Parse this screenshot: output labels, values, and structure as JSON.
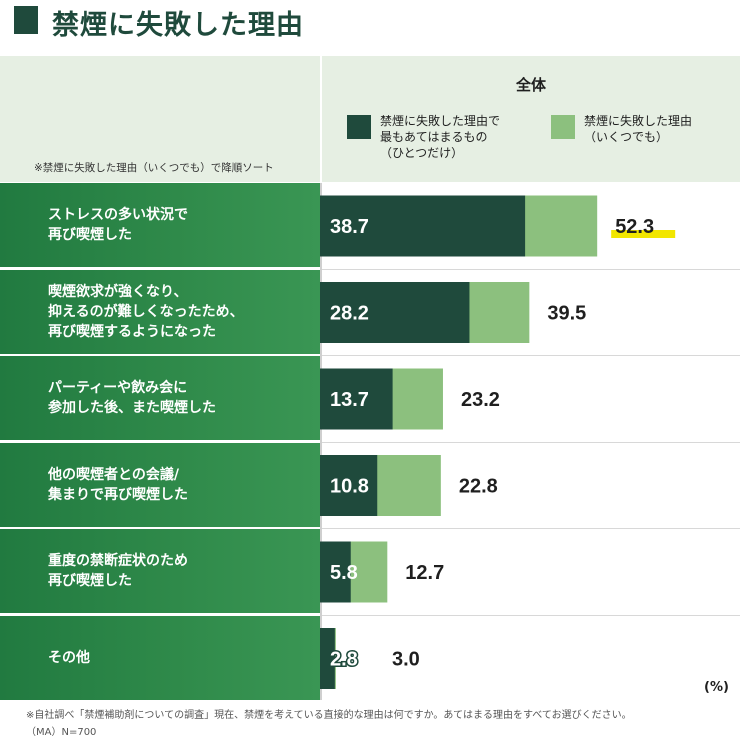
{
  "title": "禁煙に失敗した理由",
  "sort_note": "※禁煙に失敗した理由（いくつでも）で降順ソート",
  "overall_label": "全体",
  "legend": [
    {
      "lines": [
        "禁煙に失敗した理由で",
        "最もあてはまるもの",
        "（ひとつだけ）"
      ],
      "color": "#1f4a3c"
    },
    {
      "lines": [
        "禁煙に失敗した理由",
        "（いくつでも）"
      ],
      "color": "#8cc07e"
    }
  ],
  "unit_label": "(%)",
  "footnote": [
    "※自社調べ「禁煙補助剤についての調査」現在、禁煙を考えている直接的な理由は何ですか。あてはまる理由をすべてお選びください。",
    "（MA）N=700"
  ],
  "chart_data": {
    "type": "bar",
    "orientation": "horizontal",
    "categories": [
      [
        "ストレスの多い状況で",
        "再び喫煙した"
      ],
      [
        "喫煙欲求が強くなり、",
        "抑えるのが難しくなったため、",
        "再び喫煙するようになった"
      ],
      [
        "パーティーや飲み会に",
        "参加した後、また喫煙した"
      ],
      [
        "他の喫煙者との会議/",
        "集まりで再び喫煙した"
      ],
      [
        "重度の禁断症状のため",
        "再び喫煙した"
      ],
      [
        "その他"
      ]
    ],
    "series": [
      {
        "values": [
          38.7,
          28.2,
          13.7,
          10.8,
          5.8,
          2.8
        ],
        "color": "#1f4a3c"
      },
      {
        "values": [
          52.3,
          39.5,
          23.2,
          22.8,
          12.7,
          3.0
        ],
        "color": "#8cc07e"
      }
    ],
    "value_labels_primary": [
      "38.7",
      "28.2",
      "13.7",
      "10.8",
      "5.8",
      "2.8"
    ],
    "value_labels_secondary": [
      "52.3",
      "39.5",
      "23.2",
      "22.8",
      "12.7",
      "3.0"
    ],
    "highlight_color": "#f2e600",
    "xlim": [
      0,
      100
    ],
    "grid": false,
    "legend_position": "top"
  }
}
